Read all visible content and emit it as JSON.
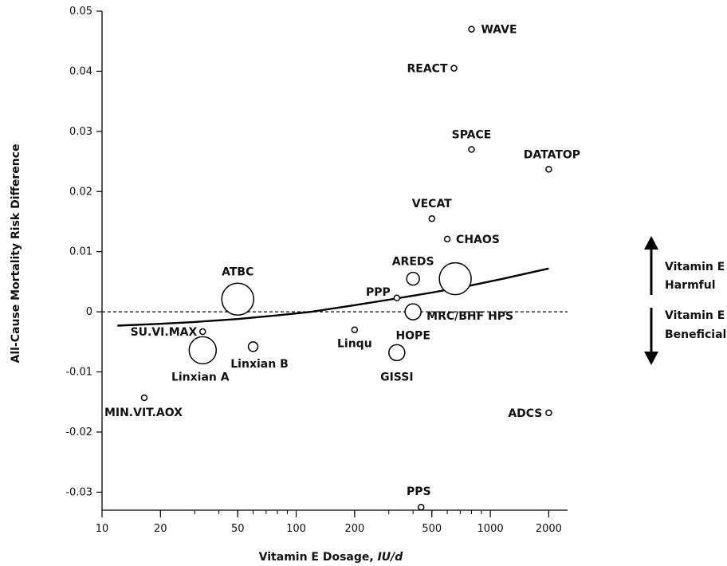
{
  "chart_data": {
    "type": "scatter",
    "xscale": "log",
    "xlim": [
      10,
      2500
    ],
    "ylim": [
      -0.033,
      0.05
    ],
    "xlabel": "Vitamin E Dosage, ",
    "xlabel_unit": "IU/d",
    "ylabel": "All-Cause Mortality Risk Difference",
    "xticks": [
      10,
      20,
      50,
      100,
      200,
      500,
      1000,
      2000
    ],
    "yticks": [
      0.05,
      0.04,
      0.03,
      0.02,
      0.01,
      0,
      -0.01,
      -0.02,
      -0.03
    ],
    "ytick_labels": [
      "0.05",
      "0.04",
      "0.03",
      "0.02",
      "0.01",
      "0",
      "-0.01",
      "-0.02",
      "-0.03"
    ],
    "points": [
      {
        "label": "WAVE",
        "x": 800,
        "y": 0.047,
        "size": 1
      },
      {
        "label": "REACT",
        "x": 650,
        "y": 0.0405,
        "size": 1
      },
      {
        "label": "SPACE",
        "x": 800,
        "y": 0.027,
        "size": 1
      },
      {
        "label": "DATATOP",
        "x": 2000,
        "y": 0.0237,
        "size": 1
      },
      {
        "label": "VECAT",
        "x": 500,
        "y": 0.0155,
        "size": 1
      },
      {
        "label": "CHAOS",
        "x": 600,
        "y": 0.0121,
        "size": 1
      },
      {
        "label": "AREDS",
        "x": 400,
        "y": 0.0055,
        "size": 3
      },
      {
        "label": "",
        "x": 660,
        "y": 0.0055,
        "size": 7
      },
      {
        "label": "ATBC",
        "x": 50,
        "y": 0.0021,
        "size": 7
      },
      {
        "label": "PPP",
        "x": 330,
        "y": 0.0023,
        "size": 1
      },
      {
        "label": "MRC/BHF HPS",
        "x": 400,
        "y": 0.0,
        "size": 4
      },
      {
        "label": "SU.VI.MAX",
        "x": 33,
        "y": -0.0033,
        "size": 1
      },
      {
        "label": "Linqu",
        "x": 200,
        "y": -0.003,
        "size": 1
      },
      {
        "label": "HOPE",
        "x": 400,
        "y": -0.001,
        "size": 0
      },
      {
        "label": "Linxian A",
        "x": 33,
        "y": -0.0064,
        "size": 6
      },
      {
        "label": "Linxian B",
        "x": 60,
        "y": -0.0058,
        "size": 2
      },
      {
        "label": "GISSI",
        "x": 330,
        "y": -0.0068,
        "size": 4
      },
      {
        "label": "MIN.VIT.AOX",
        "x": 16.5,
        "y": -0.0143,
        "size": 1
      },
      {
        "label": "ADCS",
        "x": 2000,
        "y": -0.0168,
        "size": 1
      },
      {
        "label": "PPS",
        "x": 440,
        "y": -0.0325,
        "size": 1
      }
    ],
    "trend_line": {
      "x": [
        12,
        20,
        30,
        50,
        80,
        120,
        200,
        300,
        500,
        800,
        1200,
        2000
      ],
      "y": [
        -0.0023,
        -0.002,
        -0.0017,
        -0.0012,
        -0.0006,
        0.0,
        0.0011,
        0.002,
        0.0032,
        0.0044,
        0.0056,
        0.0072
      ]
    },
    "reference_line": {
      "y": 0,
      "style": "dashed"
    },
    "annotations": {
      "harmful": [
        "Vitamin E",
        "Harmful"
      ],
      "beneficial": [
        "Vitamin E",
        "Beneficial"
      ]
    },
    "grid": false,
    "legend": "none"
  }
}
